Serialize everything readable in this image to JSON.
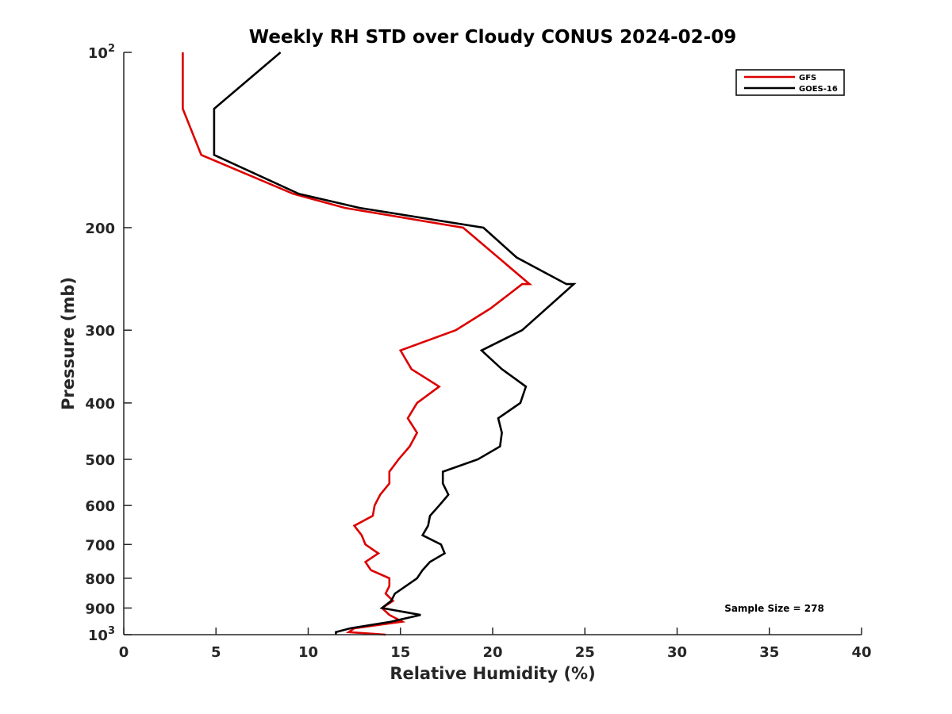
{
  "chart_data": {
    "type": "line",
    "title": "Weekly RH STD over Cloudy CONUS 2024-02-09",
    "xlabel": "Relative Humidity (%)",
    "ylabel": "Pressure (mb)",
    "xlim": [
      0,
      40
    ],
    "ylim": [
      100,
      1000
    ],
    "y_scale": "log",
    "y_reversed": true,
    "grid": false,
    "legend_position": "top-right",
    "x_ticks": [
      {
        "value": 0,
        "label": "0"
      },
      {
        "value": 5,
        "label": "5"
      },
      {
        "value": 10,
        "label": "10"
      },
      {
        "value": 15,
        "label": "15"
      },
      {
        "value": 20,
        "label": "20"
      },
      {
        "value": 25,
        "label": "25"
      },
      {
        "value": 30,
        "label": "30"
      },
      {
        "value": 35,
        "label": "35"
      },
      {
        "value": 40,
        "label": "40"
      }
    ],
    "y_ticks": [
      {
        "value": 100,
        "base": "10",
        "exp": "2"
      },
      {
        "value": 200,
        "label": "200"
      },
      {
        "value": 300,
        "label": "300"
      },
      {
        "value": 400,
        "label": "400"
      },
      {
        "value": 500,
        "label": "500"
      },
      {
        "value": 600,
        "label": "600"
      },
      {
        "value": 700,
        "label": "700"
      },
      {
        "value": 800,
        "label": "800"
      },
      {
        "value": 900,
        "label": "900"
      },
      {
        "value": 1000,
        "base": "10",
        "exp": "3"
      }
    ],
    "annotation": "Sample Size = 278",
    "series": [
      {
        "name": "GFS",
        "color": "#dd0000",
        "points": [
          [
            3.2,
            100
          ],
          [
            3.2,
            125
          ],
          [
            4.2,
            150
          ],
          [
            9.2,
            175
          ],
          [
            12,
            185
          ],
          [
            18.4,
            200
          ],
          [
            22,
            250
          ],
          [
            21.6,
            250
          ],
          [
            19.9,
            275
          ],
          [
            18,
            300
          ],
          [
            15,
            325
          ],
          [
            15.6,
            350
          ],
          [
            17.1,
            375
          ],
          [
            15.9,
            400
          ],
          [
            15.4,
            425
          ],
          [
            15.9,
            450
          ],
          [
            15.5,
            475
          ],
          [
            14.9,
            500
          ],
          [
            14.4,
            525
          ],
          [
            14.4,
            550
          ],
          [
            13.9,
            575
          ],
          [
            13.6,
            600
          ],
          [
            13.5,
            625
          ],
          [
            12.5,
            650
          ],
          [
            12.9,
            675
          ],
          [
            13.1,
            700
          ],
          [
            13.8,
            725
          ],
          [
            13.1,
            750
          ],
          [
            13.4,
            775
          ],
          [
            14.4,
            800
          ],
          [
            14.4,
            825
          ],
          [
            14.2,
            850
          ],
          [
            14.6,
            875
          ],
          [
            14.0,
            900
          ],
          [
            14.4,
            925
          ],
          [
            15.1,
            950
          ],
          [
            12.5,
            975
          ],
          [
            12.2,
            990
          ],
          [
            14.2,
            1000
          ]
        ]
      },
      {
        "name": "GOES-16",
        "color": "#000000",
        "points": [
          [
            8.5,
            100
          ],
          [
            4.9,
            125
          ],
          [
            4.9,
            150
          ],
          [
            9.5,
            175
          ],
          [
            12.8,
            185
          ],
          [
            19.5,
            200
          ],
          [
            21.3,
            225
          ],
          [
            24.0,
            250
          ],
          [
            24.4,
            250
          ],
          [
            21.6,
            300
          ],
          [
            19.4,
            325
          ],
          [
            20.5,
            350
          ],
          [
            21.8,
            375
          ],
          [
            21.5,
            400
          ],
          [
            20.3,
            425
          ],
          [
            20.5,
            450
          ],
          [
            20.4,
            475
          ],
          [
            19.2,
            500
          ],
          [
            17.3,
            525
          ],
          [
            17.3,
            550
          ],
          [
            17.6,
            575
          ],
          [
            17.1,
            600
          ],
          [
            16.6,
            625
          ],
          [
            16.5,
            650
          ],
          [
            16.2,
            675
          ],
          [
            17.2,
            700
          ],
          [
            17.4,
            725
          ],
          [
            16.6,
            750
          ],
          [
            16.2,
            775
          ],
          [
            15.9,
            800
          ],
          [
            15.3,
            825
          ],
          [
            14.7,
            850
          ],
          [
            14.5,
            875
          ],
          [
            14.0,
            900
          ],
          [
            16.1,
            925
          ],
          [
            14.5,
            950
          ],
          [
            12.3,
            975
          ],
          [
            11.5,
            990
          ],
          [
            11.5,
            1000
          ]
        ]
      }
    ]
  }
}
